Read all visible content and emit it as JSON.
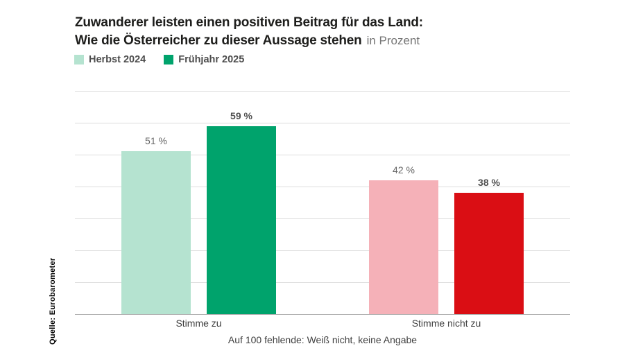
{
  "header": {
    "title_line1": "Zuwanderer leisten einen positiven Beitrag für das Land:",
    "title_line2": "Wie die Österreicher zu dieser Aussage stehen",
    "unit_suffix": "in Prozent"
  },
  "legend": {
    "items": [
      {
        "label": "Herbst 2024",
        "color": "#b5e3d0"
      },
      {
        "label": "Frühjahr 2025",
        "color": "#00a36c"
      }
    ]
  },
  "footer": {
    "note": "Auf 100 fehlende: Weiß nicht, keine Angabe",
    "source": "Quelle: Eurobarometer"
  },
  "colors": {
    "herbst_zu": "#b5e3d0",
    "fruehjahr_zu": "#00a36c",
    "herbst_nicht_zu": "#f5b1b8",
    "fruehjahr_nicht_zu": "#da0e14",
    "gridline": "#dcdcdc",
    "baseline": "#b3b3b3"
  },
  "chart_data": {
    "type": "bar",
    "title": "Zuwanderer leisten einen positiven Beitrag für das Land: Wie die Österreicher zu dieser Aussage stehen (in Prozent)",
    "xlabel": "",
    "ylabel": "",
    "unit": "%",
    "ylim": [
      0,
      70
    ],
    "grid_step": 10,
    "grid": true,
    "legend_position": "top-left",
    "categories": [
      "Stimme zu",
      "Stimme nicht zu"
    ],
    "series_names": [
      "Herbst 2024",
      "Frühjahr 2025"
    ],
    "groups": [
      {
        "category": "Stimme zu",
        "bars": [
          {
            "series": "Herbst 2024",
            "value": 51,
            "label": "51 %",
            "color": "#b5e3d0",
            "bold": false
          },
          {
            "series": "Frühjahr 2025",
            "value": 59,
            "label": "59 %",
            "color": "#00a36c",
            "bold": true
          }
        ]
      },
      {
        "category": "Stimme nicht zu",
        "bars": [
          {
            "series": "Herbst 2024",
            "value": 42,
            "label": "42 %",
            "color": "#f5b1b8",
            "bold": false
          },
          {
            "series": "Frühjahr 2025",
            "value": 38,
            "label": "38 %",
            "color": "#da0e14",
            "bold": true
          }
        ]
      }
    ]
  }
}
